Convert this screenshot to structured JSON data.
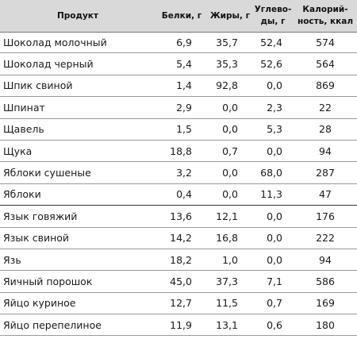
{
  "table": {
    "headers": [
      "Продукт",
      "Белки, г",
      "Жиры, г",
      "Углево-\nды, г",
      "Калорий-\nность, ккал"
    ],
    "rows": [
      {
        "name": "Шоколад молочный",
        "protein": "6,9",
        "fat": "35,7",
        "carbs": "52,4",
        "kcal": "574"
      },
      {
        "name": "Шоколад черный",
        "protein": "5,4",
        "fat": "35,3",
        "carbs": "52,6",
        "kcal": "564"
      },
      {
        "name": "Шпик свиной",
        "protein": "1,4",
        "fat": "92,8",
        "carbs": "0,0",
        "kcal": "869"
      },
      {
        "name": "Шпинат",
        "protein": "2,9",
        "fat": "0,0",
        "carbs": "2,3",
        "kcal": "22"
      },
      {
        "name": "Щавель",
        "protein": "1,5",
        "fat": "0,0",
        "carbs": "5,3",
        "kcal": "28"
      },
      {
        "name": "Щука",
        "protein": "18,8",
        "fat": "0,7",
        "carbs": "0,0",
        "kcal": "94"
      },
      {
        "name": "Яблоки сушеные",
        "protein": "3,2",
        "fat": "0,0",
        "carbs": "68,0",
        "kcal": "287"
      },
      {
        "name": "Яблоки",
        "protein": "0,4",
        "fat": "0,0",
        "carbs": "11,3",
        "kcal": "47"
      },
      {
        "name": "Язык говяжий",
        "protein": "13,6",
        "fat": "12,1",
        "carbs": "0,0",
        "kcal": "176"
      },
      {
        "name": "Язык свиной",
        "protein": "14,2",
        "fat": "16,8",
        "carbs": "0,0",
        "kcal": "222"
      },
      {
        "name": "Язь",
        "protein": "18,2",
        "fat": "1,0",
        "carbs": "0,0",
        "kcal": "94"
      },
      {
        "name": "Яичный порошок",
        "protein": "45,0",
        "fat": "37,3",
        "carbs": "7,1",
        "kcal": "586"
      },
      {
        "name": "Яйцо куриное",
        "protein": "12,7",
        "fat": "11,5",
        "carbs": "0,7",
        "kcal": "169"
      },
      {
        "name": "Яйцо перепелиное",
        "protein": "11,9",
        "fat": "13,1",
        "carbs": "0,6",
        "kcal": "180"
      }
    ]
  }
}
